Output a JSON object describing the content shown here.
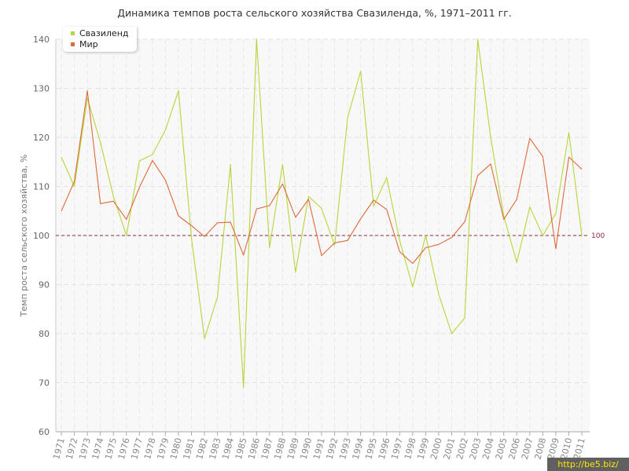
{
  "chart_data": {
    "type": "line",
    "title": "Динамика темпов роста сельского хозяйства Свазиленда, %, 1971–2011 гг.",
    "ylabel": "Темп роста сельского хозяйства, %",
    "xlabel": "",
    "ylim": [
      60,
      140
    ],
    "yticks": [
      60,
      70,
      80,
      90,
      100,
      110,
      120,
      130,
      140
    ],
    "grid": true,
    "legend_position": "top-left",
    "reference_line": {
      "value": 100,
      "label": "100",
      "color": "#8b2a3a"
    },
    "categories": [
      "1971",
      "1972",
      "1973",
      "1974",
      "1975",
      "1976",
      "1977",
      "1978",
      "1979",
      "1980",
      "1981",
      "1982",
      "1983",
      "1984",
      "1985",
      "1986",
      "1987",
      "1988",
      "1989",
      "1990",
      "1991",
      "1992",
      "1993",
      "1994",
      "1995",
      "1996",
      "1997",
      "1998",
      "1999",
      "2000",
      "2001",
      "2002",
      "2003",
      "2004",
      "2005",
      "2006",
      "2007",
      "2008",
      "2009",
      "2010",
      "2011"
    ],
    "series": [
      {
        "name": "Свазиленд",
        "color": "#b5d63a",
        "values": [
          116,
          110,
          128,
          119,
          108,
          100,
          115.2,
          116.5,
          121.5,
          129.5,
          99.5,
          79,
          87.5,
          114.5,
          69,
          140,
          97.5,
          114.5,
          92.5,
          108,
          105.5,
          98,
          124,
          133.5,
          106,
          111.8,
          99,
          89.5,
          100,
          88,
          80,
          83.2,
          140,
          120,
          104,
          94.5,
          105.8,
          100,
          104.5,
          121,
          100
        ]
      },
      {
        "name": "Мир",
        "color": "#dd6a3a",
        "values": [
          105,
          111,
          129.5,
          106.5,
          107,
          103.3,
          109.8,
          115.3,
          111.3,
          104,
          102,
          99.8,
          102.6,
          102.7,
          96,
          105.4,
          106.1,
          110.5,
          103.7,
          107.4,
          95.9,
          98.5,
          99,
          103.4,
          107.2,
          105.3,
          96.7,
          94.3,
          97.5,
          98.2,
          99.6,
          102.8,
          112.2,
          114.6,
          103.3,
          107.4,
          119.8,
          116.1,
          97.3,
          116,
          113.5
        ]
      }
    ]
  },
  "watermark": "http://be5.biz/"
}
